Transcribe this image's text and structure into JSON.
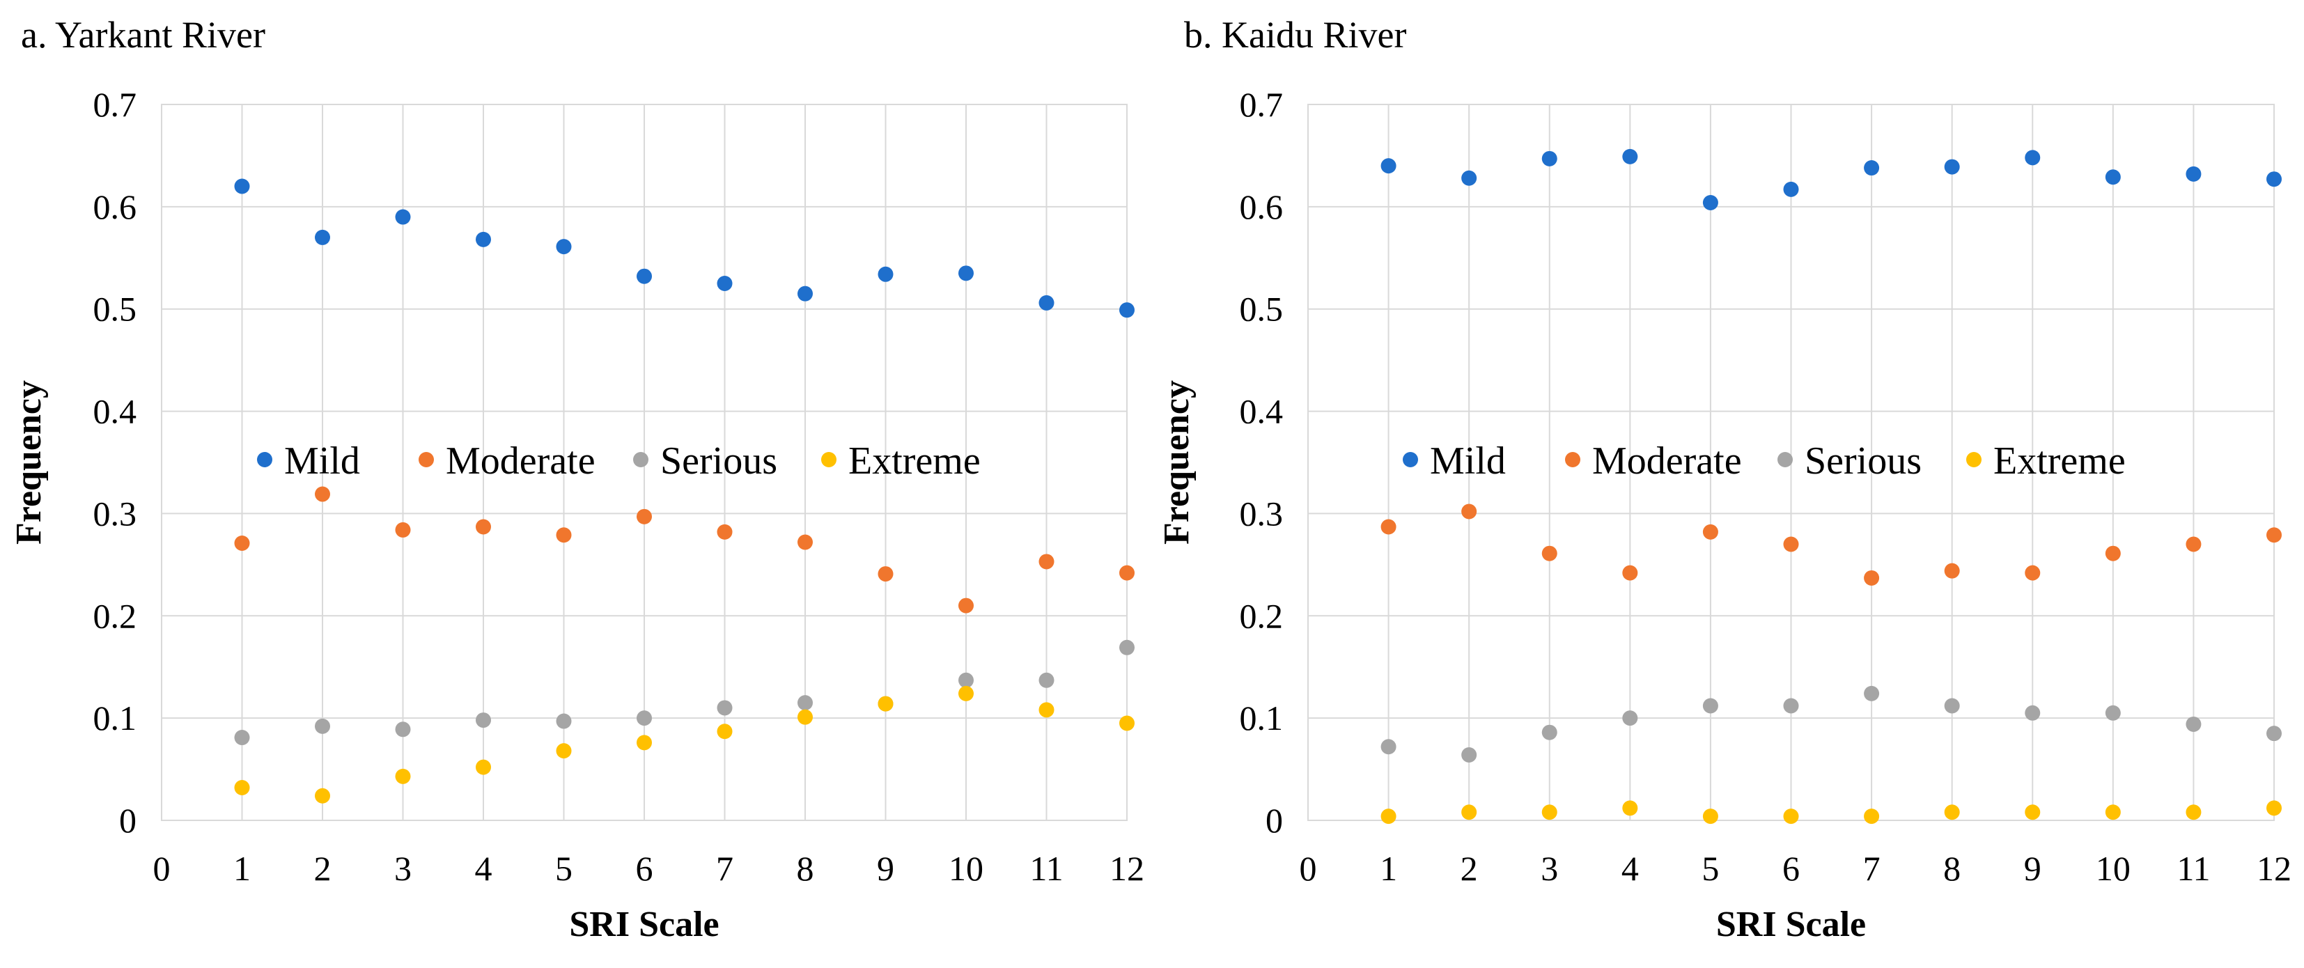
{
  "chart_data": [
    {
      "type": "scatter",
      "title": "a. Yarkant River",
      "xlabel": "SRI Scale",
      "ylabel": "Frequency",
      "xlim": [
        0,
        12
      ],
      "ylim": [
        0,
        0.7
      ],
      "xticks": [
        0,
        1,
        2,
        3,
        4,
        5,
        6,
        7,
        8,
        9,
        10,
        11,
        12
      ],
      "yticks": [
        0,
        0.1,
        0.2,
        0.3,
        0.4,
        0.5,
        0.6,
        0.7
      ],
      "ytick_labels": [
        "0",
        "0.1",
        "0.2",
        "0.3",
        "0.4",
        "0.5",
        "0.6",
        "0.7"
      ],
      "x": [
        1,
        2,
        3,
        4,
        5,
        6,
        7,
        8,
        9,
        10,
        11,
        12
      ],
      "grid": true,
      "legend_position": "middle",
      "series": [
        {
          "name": "Mild",
          "color": "#1f6fcc",
          "values": [
            0.62,
            0.57,
            0.59,
            0.568,
            0.561,
            0.532,
            0.525,
            0.515,
            0.534,
            0.535,
            0.506,
            0.499
          ]
        },
        {
          "name": "Moderate",
          "color": "#f0762d",
          "values": [
            0.271,
            0.319,
            0.284,
            0.287,
            0.279,
            0.297,
            0.282,
            0.272,
            0.241,
            0.21,
            0.253,
            0.242
          ]
        },
        {
          "name": "Serious",
          "color": "#a5a5a5",
          "values": [
            0.081,
            0.092,
            0.089,
            0.098,
            0.097,
            0.1,
            0.11,
            0.115,
            0.114,
            0.137,
            0.137,
            0.169
          ]
        },
        {
          "name": "Extreme",
          "color": "#ffc000",
          "values": [
            0.032,
            0.024,
            0.043,
            0.052,
            0.068,
            0.076,
            0.087,
            0.101,
            0.114,
            0.124,
            0.108,
            0.095
          ]
        }
      ]
    },
    {
      "type": "scatter",
      "title": "b. Kaidu River",
      "xlabel": "SRI Scale",
      "ylabel": "Frequency",
      "xlim": [
        0,
        12
      ],
      "ylim": [
        0,
        0.7
      ],
      "xticks": [
        0,
        1,
        2,
        3,
        4,
        5,
        6,
        7,
        8,
        9,
        10,
        11,
        12
      ],
      "yticks": [
        0,
        0.1,
        0.2,
        0.3,
        0.4,
        0.5,
        0.6,
        0.7
      ],
      "ytick_labels": [
        "0",
        "0.1",
        "0.2",
        "0.3",
        "0.4",
        "0.5",
        "0.6",
        "0.7"
      ],
      "x": [
        1,
        2,
        3,
        4,
        5,
        6,
        7,
        8,
        9,
        10,
        11,
        12
      ],
      "grid": true,
      "legend_position": "middle",
      "series": [
        {
          "name": "Mild",
          "color": "#1f6fcc",
          "values": [
            0.64,
            0.628,
            0.647,
            0.649,
            0.604,
            0.617,
            0.638,
            0.639,
            0.648,
            0.629,
            0.632,
            0.627
          ]
        },
        {
          "name": "Moderate",
          "color": "#f0762d",
          "values": [
            0.287,
            0.302,
            0.261,
            0.242,
            0.282,
            0.27,
            0.237,
            0.244,
            0.242,
            0.261,
            0.27,
            0.279
          ]
        },
        {
          "name": "Serious",
          "color": "#a5a5a5",
          "values": [
            0.072,
            0.064,
            0.086,
            0.1,
            0.112,
            0.112,
            0.124,
            0.112,
            0.105,
            0.105,
            0.094,
            0.085
          ]
        },
        {
          "name": "Extreme",
          "color": "#ffc000",
          "values": [
            0.004,
            0.008,
            0.008,
            0.012,
            0.004,
            0.004,
            0.004,
            0.008,
            0.008,
            0.008,
            0.008,
            0.012
          ]
        }
      ]
    }
  ]
}
